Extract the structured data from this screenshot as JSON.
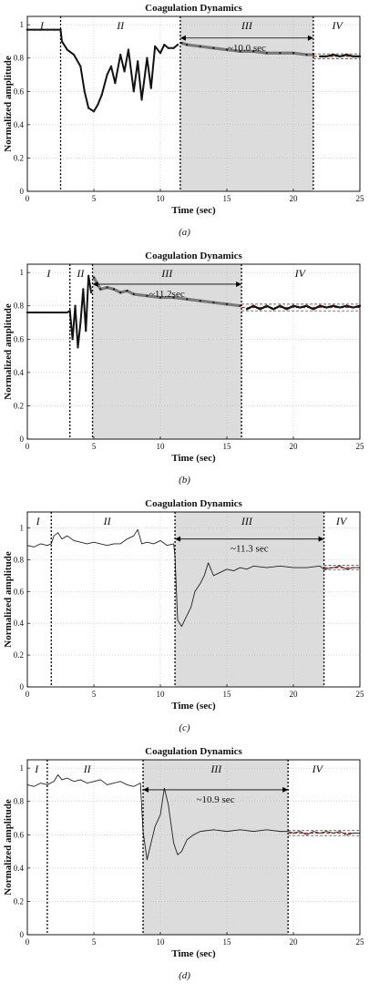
{
  "chart_data": [
    {
      "type": "line",
      "title": "Coagulation Dynamics",
      "xlabel": "Time (sec)",
      "ylabel": "Normalized amplitude",
      "caption": "(a)",
      "xlim": [
        0,
        25
      ],
      "ylim": [
        0,
        1.05
      ],
      "xticks": [
        0,
        5,
        10,
        15,
        20,
        25
      ],
      "yticks": [
        0,
        0.2,
        0.4,
        0.6,
        0.8,
        1
      ],
      "grid": true,
      "dividers": [
        2.5,
        11.5,
        21.5
      ],
      "phases": [
        {
          "label": "I",
          "x": 1.1
        },
        {
          "label": "II",
          "x": 7.0
        },
        {
          "label": "III",
          "x": 16.5
        },
        {
          "label": "IV",
          "x": 23.3
        }
      ],
      "shaded": [
        11.5,
        21.5
      ],
      "arrow": {
        "x1": 11.5,
        "x2": 21.5,
        "y": 0.92,
        "label": "~10.0 sec"
      },
      "ref_band": {
        "x1": 21.5,
        "x2": 25,
        "y": 0.81,
        "dy": 0.015
      },
      "series_style": "marker",
      "series": [
        {
          "x": [
            0,
            0.5,
            1,
            1.5,
            2,
            2.5,
            2.6,
            3,
            3.5,
            4,
            4.3,
            4.6,
            5,
            5.3,
            5.6,
            6,
            6.3,
            6.6,
            7,
            7.3,
            7.6,
            8,
            8.3,
            8.6,
            9,
            9.3,
            9.6,
            10,
            10.3,
            10.6,
            11,
            11.3,
            11.6,
            12,
            13,
            14,
            15,
            16,
            17,
            18,
            19,
            20,
            21,
            21.5,
            22,
            22.5,
            23,
            23.5,
            24,
            24.5,
            25
          ],
          "y": [
            0.97,
            0.97,
            0.97,
            0.97,
            0.97,
            0.97,
            0.9,
            0.85,
            0.82,
            0.75,
            0.6,
            0.5,
            0.48,
            0.52,
            0.58,
            0.7,
            0.75,
            0.65,
            0.82,
            0.72,
            0.85,
            0.6,
            0.78,
            0.55,
            0.8,
            0.62,
            0.87,
            0.83,
            0.88,
            0.86,
            0.86,
            0.88,
            0.89,
            0.88,
            0.87,
            0.86,
            0.85,
            0.84,
            0.84,
            0.83,
            0.83,
            0.83,
            0.82,
            0.82,
            0.81,
            0.81,
            0.82,
            0.81,
            0.82,
            0.81,
            0.81
          ]
        }
      ]
    },
    {
      "type": "line",
      "title": "Coagulation Dynamics",
      "xlabel": "Time (sec)",
      "ylabel": "Normalized amplitude",
      "caption": "(b)",
      "xlim": [
        0,
        25
      ],
      "ylim": [
        0,
        1.05
      ],
      "xticks": [
        0,
        5,
        10,
        15,
        20,
        25
      ],
      "yticks": [
        0,
        0.2,
        0.4,
        0.6,
        0.8,
        1
      ],
      "grid": true,
      "dividers": [
        3.2,
        4.9,
        16.1
      ],
      "phases": [
        {
          "label": "I",
          "x": 1.6
        },
        {
          "label": "II",
          "x": 4.0
        },
        {
          "label": "III",
          "x": 10.5
        },
        {
          "label": "IV",
          "x": 20.5
        }
      ],
      "shaded": [
        4.9,
        16.1
      ],
      "arrow": {
        "x1": 4.9,
        "x2": 16.1,
        "y": 0.93,
        "label": "~11.2sec"
      },
      "ref_band": {
        "x1": 16.1,
        "x2": 25,
        "y": 0.79,
        "dy": 0.02
      },
      "series_style": "marker",
      "series": [
        {
          "x": [
            0,
            0.5,
            1,
            1.5,
            2,
            2.5,
            3,
            3.2,
            3.4,
            3.6,
            3.8,
            4,
            4.2,
            4.4,
            4.6,
            4.8,
            5,
            5.5,
            6,
            6.5,
            7,
            7.5,
            8,
            9,
            10,
            11,
            12,
            13,
            14,
            15,
            16,
            16.5,
            17,
            17.5,
            18,
            18.5,
            19,
            19.5,
            20,
            20.5,
            21,
            21.5,
            22,
            22.5,
            23,
            23.5,
            24,
            24.5,
            25
          ],
          "y": [
            0.76,
            0.76,
            0.76,
            0.76,
            0.76,
            0.76,
            0.76,
            0.77,
            0.6,
            0.8,
            0.55,
            0.7,
            0.9,
            0.65,
            0.98,
            0.88,
            0.97,
            0.9,
            0.91,
            0.9,
            0.88,
            0.89,
            0.87,
            0.86,
            0.85,
            0.85,
            0.84,
            0.83,
            0.82,
            0.81,
            0.8,
            0.78,
            0.8,
            0.78,
            0.8,
            0.78,
            0.8,
            0.78,
            0.8,
            0.79,
            0.8,
            0.78,
            0.8,
            0.79,
            0.8,
            0.79,
            0.8,
            0.79,
            0.8
          ]
        }
      ]
    },
    {
      "type": "line",
      "title": "Coagulation Dynamics",
      "xlabel": "Time (sec)",
      "ylabel": "Normalized amplitude",
      "caption": "(c)",
      "xlim": [
        0,
        25
      ],
      "ylim": [
        0,
        1.1
      ],
      "xticks": [
        0,
        5,
        10,
        15,
        20,
        25
      ],
      "yticks": [
        0,
        0.2,
        0.4,
        0.6,
        0.8,
        1
      ],
      "grid": true,
      "dividers": [
        1.8,
        11.1,
        22.3
      ],
      "phases": [
        {
          "label": "I",
          "x": 0.8
        },
        {
          "label": "II",
          "x": 6.0
        },
        {
          "label": "III",
          "x": 16.5
        },
        {
          "label": "IV",
          "x": 23.6
        }
      ],
      "shaded": [
        11.1,
        22.3
      ],
      "arrow": {
        "x1": 11.1,
        "x2": 22.3,
        "y": 0.93,
        "label": "~11.3 sec"
      },
      "ref_band": {
        "x1": 22.3,
        "x2": 25,
        "y": 0.75,
        "dy": 0.015
      },
      "series_style": "line",
      "series": [
        {
          "x": [
            0,
            0.5,
            1,
            1.5,
            1.8,
            2,
            2.3,
            2.6,
            3,
            3.5,
            4,
            4.5,
            5,
            5.5,
            6,
            6.5,
            7,
            7.5,
            8,
            8.3,
            8.6,
            9,
            9.5,
            10,
            10.5,
            11,
            11.1,
            11.3,
            11.6,
            12,
            12.3,
            12.6,
            13,
            13.3,
            13.6,
            14,
            14.5,
            15,
            15.5,
            16,
            16.5,
            17,
            18,
            19,
            20,
            21,
            22,
            22.3,
            23,
            23.5,
            24,
            24.5,
            25
          ],
          "y": [
            0.89,
            0.88,
            0.9,
            0.89,
            0.9,
            0.95,
            0.97,
            0.93,
            0.95,
            0.92,
            0.91,
            0.9,
            0.91,
            0.9,
            0.89,
            0.9,
            0.9,
            0.93,
            0.95,
            0.99,
            0.9,
            0.91,
            0.9,
            0.92,
            0.89,
            0.9,
            0.82,
            0.42,
            0.38,
            0.45,
            0.5,
            0.6,
            0.65,
            0.7,
            0.78,
            0.7,
            0.72,
            0.74,
            0.73,
            0.75,
            0.74,
            0.76,
            0.75,
            0.76,
            0.75,
            0.75,
            0.76,
            0.74,
            0.75,
            0.76,
            0.74,
            0.75,
            0.75
          ]
        }
      ]
    },
    {
      "type": "line",
      "title": "Coagulation Dynamics",
      "xlabel": "Time (sec)",
      "ylabel": "Normalized amplitude",
      "caption": "(d)",
      "xlim": [
        0,
        25
      ],
      "ylim": [
        0,
        1.05
      ],
      "xticks": [
        0,
        5,
        10,
        15,
        20,
        25
      ],
      "yticks": [
        0,
        0.2,
        0.4,
        0.6,
        0.8,
        1
      ],
      "grid": true,
      "dividers": [
        1.5,
        8.7,
        19.6
      ],
      "phases": [
        {
          "label": "I",
          "x": 0.7
        },
        {
          "label": "II",
          "x": 4.5
        },
        {
          "label": "III",
          "x": 14.2
        },
        {
          "label": "IV",
          "x": 21.8
        }
      ],
      "shaded": [
        8.7,
        19.6
      ],
      "arrow": {
        "x1": 8.7,
        "x2": 19.6,
        "y": 0.87,
        "label": "~10.9 sec"
      },
      "ref_band": {
        "x1": 19.6,
        "x2": 25,
        "y": 0.61,
        "dy": 0.015
      },
      "series_style": "line",
      "series": [
        {
          "x": [
            0,
            0.5,
            1,
            1.5,
            2,
            2.3,
            2.6,
            3,
            3.5,
            4,
            4.5,
            5,
            5.5,
            6,
            6.5,
            7,
            7.5,
            8,
            8.5,
            8.7,
            9,
            9.3,
            9.6,
            10,
            10.3,
            10.6,
            11,
            11.3,
            11.6,
            12,
            12.5,
            13,
            14,
            15,
            16,
            17,
            18,
            19,
            19.6,
            20,
            20.5,
            21,
            21.5,
            22,
            22.5,
            23,
            23.5,
            24,
            24.5,
            25
          ],
          "y": [
            0.9,
            0.89,
            0.91,
            0.9,
            0.92,
            0.96,
            0.93,
            0.94,
            0.92,
            0.93,
            0.91,
            0.92,
            0.93,
            0.9,
            0.91,
            0.92,
            0.9,
            0.89,
            0.91,
            0.62,
            0.45,
            0.55,
            0.65,
            0.72,
            0.88,
            0.78,
            0.55,
            0.48,
            0.5,
            0.57,
            0.6,
            0.62,
            0.63,
            0.62,
            0.63,
            0.62,
            0.63,
            0.62,
            0.62,
            0.61,
            0.62,
            0.6,
            0.62,
            0.61,
            0.62,
            0.61,
            0.62,
            0.6,
            0.61,
            0.61
          ]
        }
      ]
    }
  ]
}
